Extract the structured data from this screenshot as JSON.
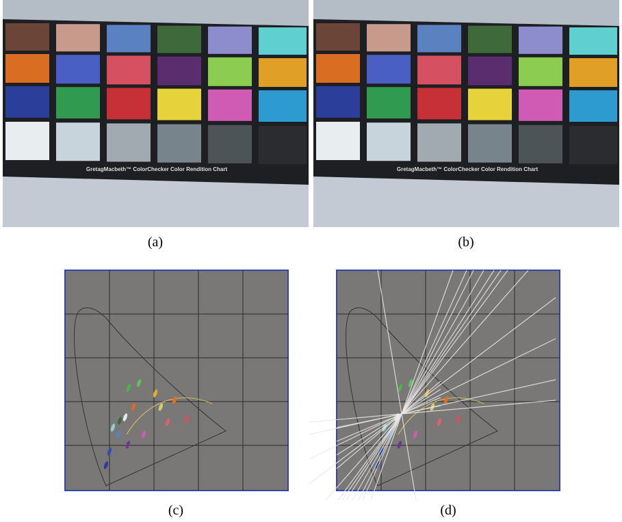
{
  "figure": {
    "panels": [
      {
        "caption": "(a)",
        "chart_label": "GretagMacbeth™ ColorChecker Color Rendition Chart"
      },
      {
        "caption": "(b)",
        "chart_label": "GretagMacbeth™ ColorChecker Color Rendition Chart"
      },
      {
        "caption": "(c)"
      },
      {
        "caption": "(d)"
      }
    ]
  }
}
